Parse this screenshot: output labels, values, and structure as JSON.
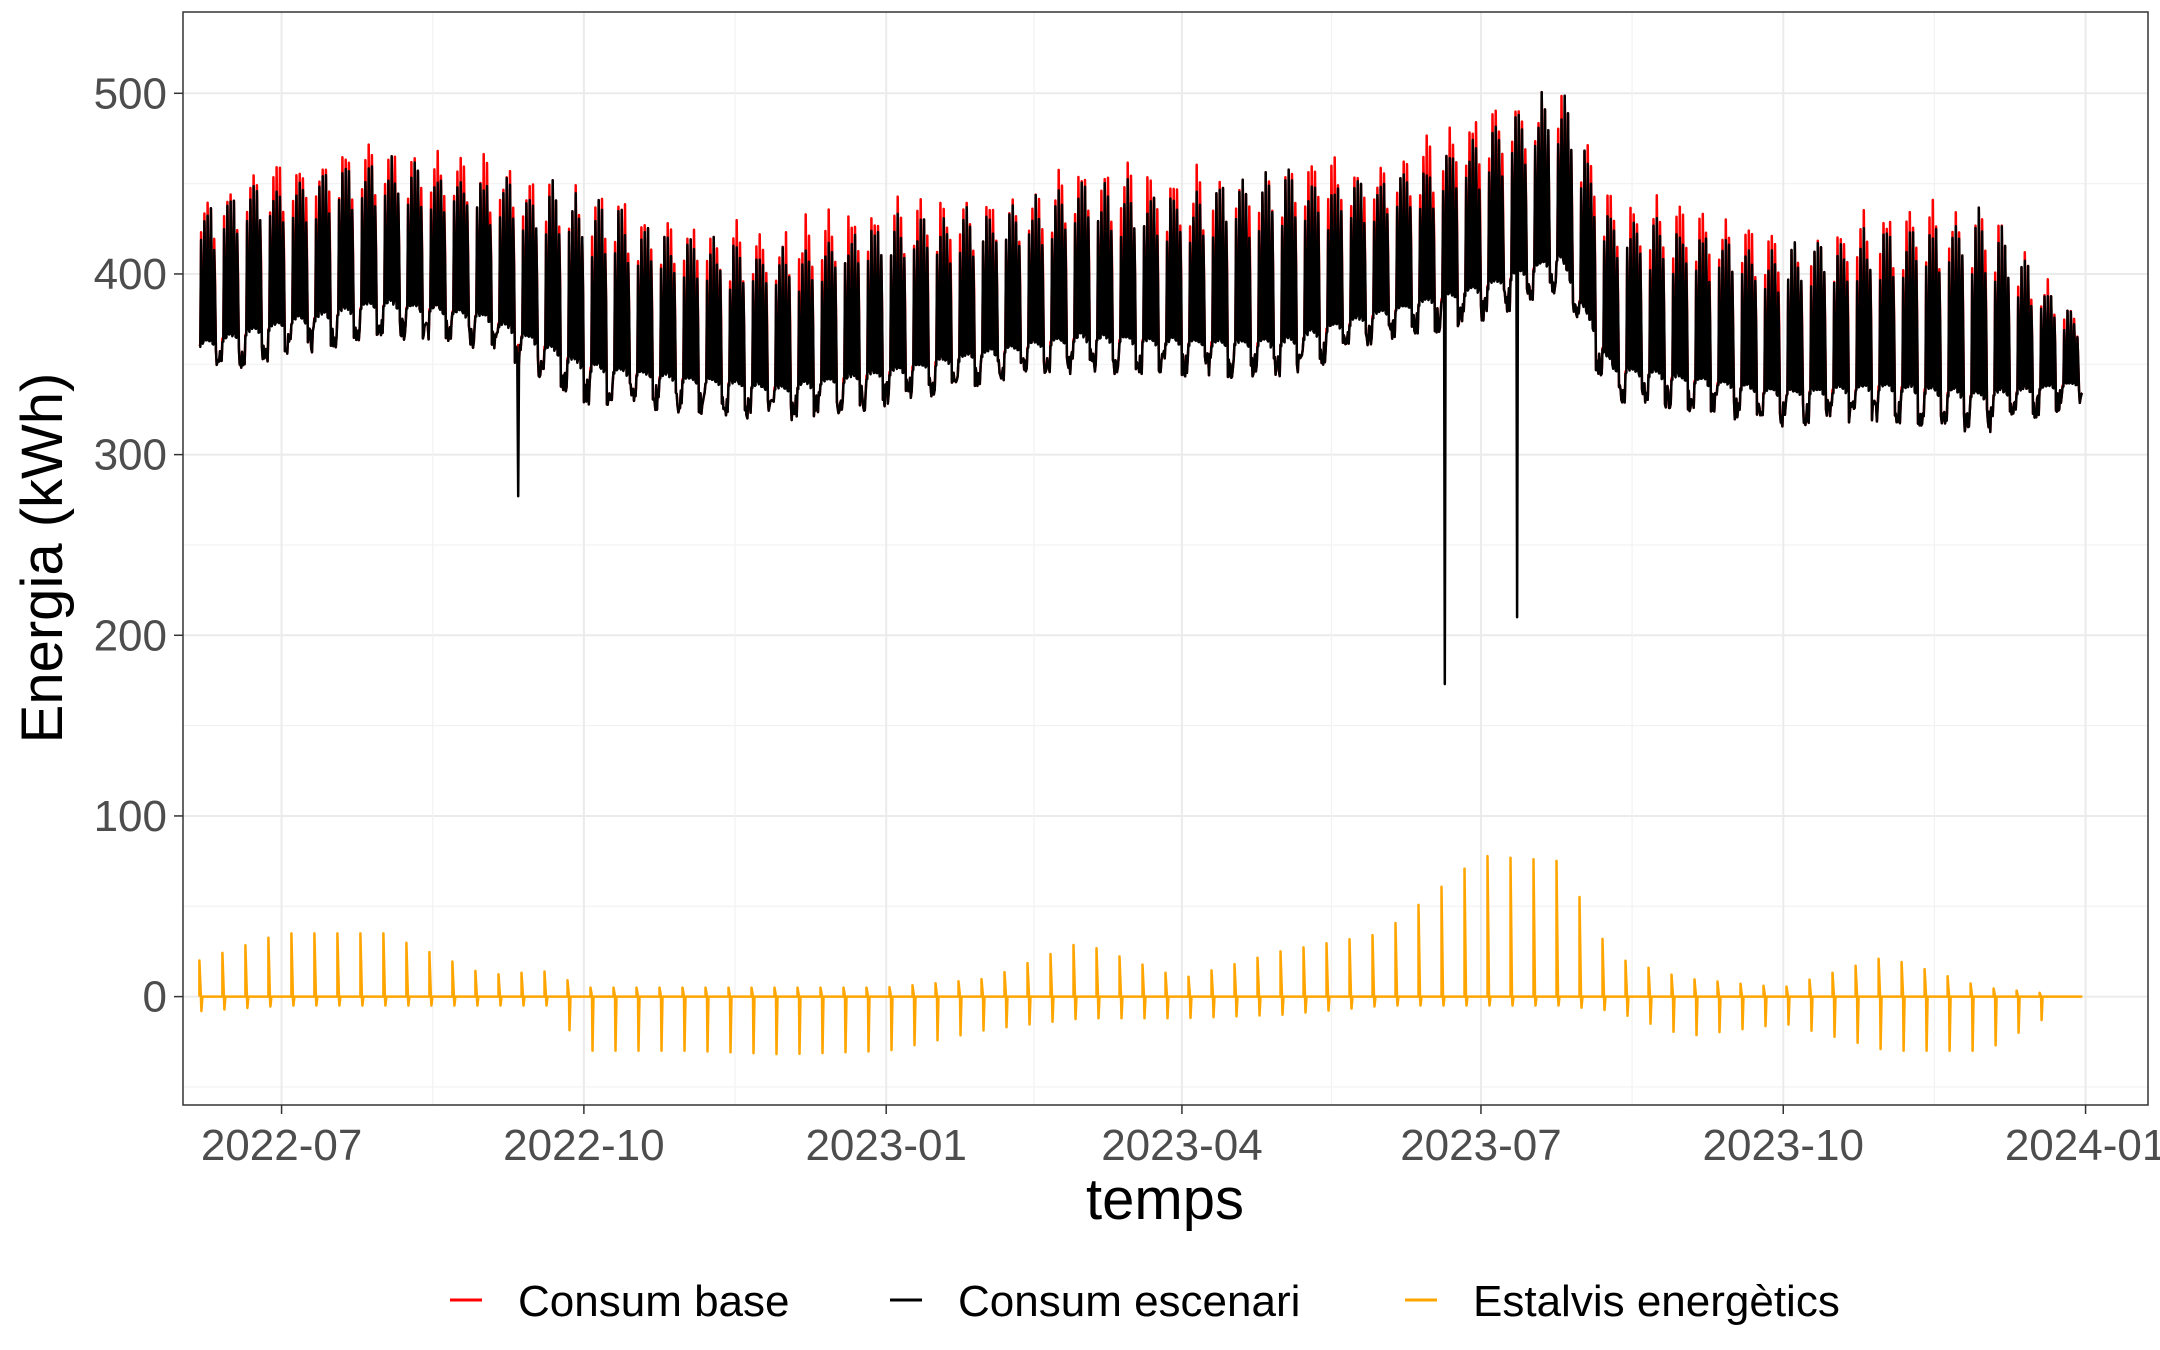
{
  "chart_data": {
    "type": "line",
    "title": "",
    "xlabel": "temps",
    "ylabel": "Energia (kWh)",
    "ylim": [
      -60,
      545
    ],
    "yticks": [
      0,
      100,
      200,
      300,
      400,
      500
    ],
    "ytick_labels": [
      "0",
      "100",
      "200",
      "300",
      "400",
      "500"
    ],
    "x_range_days": [
      "2022-06-01",
      "2024-01-20"
    ],
    "xticks": [
      "2022-07-01",
      "2022-10-01",
      "2023-01-01",
      "2023-04-01",
      "2023-07-01",
      "2023-10-01",
      "2024-01-01"
    ],
    "xtick_labels": [
      "2022-07",
      "2022-10",
      "2023-01",
      "2023-04",
      "2023-07",
      "2023-10",
      "2024-01"
    ],
    "grid": true,
    "legend_position": "bottom",
    "series": [
      {
        "name": "Consum base",
        "color": "#ff0000",
        "description": "Weekly peaks slightly above the scenario consumption",
        "x": [
          "2022-06-06",
          "2022-07-01",
          "2022-08-01",
          "2022-09-01",
          "2022-10-01",
          "2022-11-01",
          "2022-12-01",
          "2023-01-01",
          "2023-02-01",
          "2023-03-01",
          "2023-04-01",
          "2023-05-01",
          "2023-06-01",
          "2023-07-01",
          "2023-07-25",
          "2023-08-10",
          "2023-09-01",
          "2023-10-01",
          "2023-11-01",
          "2023-12-01",
          "2023-12-31"
        ],
        "peak_values": [
          450,
          470,
          475,
          468,
          455,
          432,
          430,
          445,
          448,
          465,
          460,
          470,
          465,
          495,
          510,
          450,
          440,
          425,
          440,
          445,
          375
        ]
      },
      {
        "name": "Consum escenari",
        "color": "#000000",
        "x": [
          "2022-06-06",
          "2022-07-01",
          "2022-08-01",
          "2022-09-01",
          "2022-10-01",
          "2022-11-01",
          "2022-12-01",
          "2023-01-01",
          "2023-02-01",
          "2023-03-01",
          "2023-04-01",
          "2023-05-01",
          "2023-06-01",
          "2023-07-01",
          "2023-07-25",
          "2023-08-10",
          "2023-09-01",
          "2023-10-01",
          "2023-11-01",
          "2023-12-01",
          "2023-12-31"
        ],
        "base_values": [
          350,
          360,
          372,
          365,
          335,
          330,
          325,
          333,
          345,
          352,
          350,
          348,
          368,
          380,
          395,
          335,
          330,
          322,
          325,
          318,
          335
        ],
        "peak_values": [
          440,
          460,
          470,
          460,
          450,
          425,
          420,
          435,
          440,
          455,
          450,
          460,
          455,
          480,
          510,
          440,
          430,
          420,
          430,
          440,
          375
        ],
        "dips": [
          {
            "date": "2022-09-11",
            "value": 277
          },
          {
            "date": "2023-06-20",
            "value": 173
          },
          {
            "date": "2023-07-12",
            "value": 210
          }
        ]
      },
      {
        "name": "Estalvis energètics",
        "color": "#ffa500",
        "x": [
          "2022-06-06",
          "2022-07-01",
          "2022-08-01",
          "2022-09-01",
          "2022-09-20",
          "2022-10-01",
          "2022-11-01",
          "2022-12-01",
          "2023-01-01",
          "2023-02-01",
          "2023-03-01",
          "2023-04-01",
          "2023-05-01",
          "2023-06-01",
          "2023-07-01",
          "2023-07-25",
          "2023-08-10",
          "2023-09-01",
          "2023-10-01",
          "2023-11-01",
          "2023-12-01",
          "2023-12-31"
        ],
        "positive_peaks": [
          20,
          35,
          35,
          12,
          14,
          5,
          5,
          5,
          5,
          10,
          30,
          10,
          25,
          35,
          78,
          75,
          22,
          10,
          5,
          22,
          5,
          0
        ],
        "negative_peaks": [
          -8,
          -5,
          -5,
          -5,
          -5,
          -30,
          -30,
          -32,
          -30,
          -18,
          -12,
          -12,
          -10,
          -5,
          -5,
          -5,
          -8,
          -22,
          -15,
          -30,
          -30,
          0
        ]
      }
    ]
  }
}
